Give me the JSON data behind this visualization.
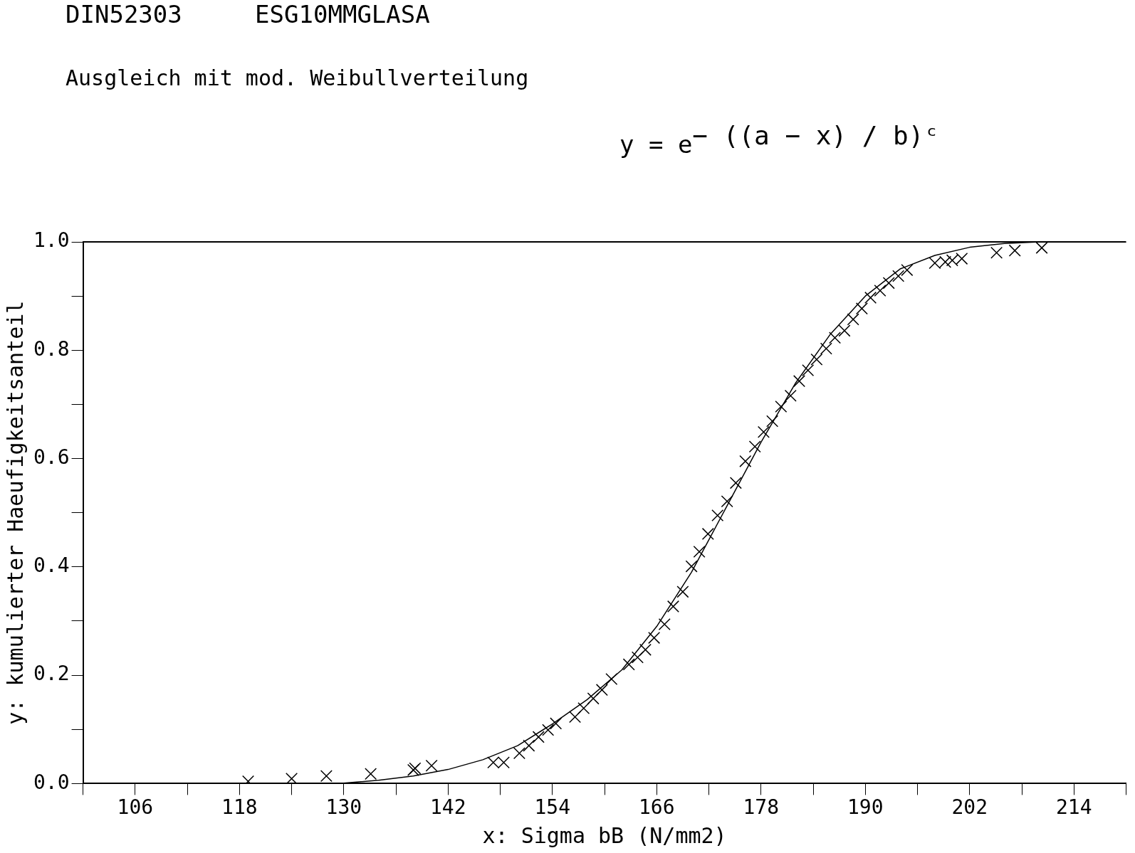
{
  "chart_data": {
    "type": "scatter",
    "title": "DIN52303     ESG10MMGLASA",
    "subtitle": "Ausgleich mit mod. Weibullverteilung",
    "annotations": [
      "y = e$^{− ((a − x) / b)ᶜ}$"
    ],
    "xlabel": "x: Sigma bB (N/mm2)",
    "ylabel": "y: kumulierter Haeufigkeitsanteil",
    "xlim": [
      100,
      220
    ],
    "ylim": [
      0,
      1
    ],
    "xticks": [
      {
        "value": 100,
        "label": null
      },
      106,
      {
        "value": 112,
        "label": null
      },
      118,
      {
        "value": 124,
        "label": null
      },
      130,
      {
        "value": 136,
        "label": null
      },
      142,
      {
        "value": 148,
        "label": null
      },
      154,
      {
        "value": 160,
        "label": null
      },
      166,
      {
        "value": 172,
        "label": null
      },
      178,
      {
        "value": 184,
        "label": null
      },
      190,
      {
        "value": 196,
        "label": null
      },
      202,
      {
        "value": 208,
        "label": null
      },
      214,
      {
        "value": 220,
        "label": null
      }
    ],
    "yticks": [
      {
        "value": 0,
        "label": "0.0"
      },
      {
        "value": 0.1,
        "label": null
      },
      {
        "value": 0.2,
        "label": "0.2"
      },
      {
        "value": 0.3,
        "label": null
      },
      {
        "value": 0.4,
        "label": "0.4"
      },
      {
        "value": 0.5,
        "label": null
      },
      {
        "value": 0.6,
        "label": "0.6"
      },
      {
        "value": 0.7,
        "label": null
      },
      {
        "value": 0.8,
        "label": "0.8"
      },
      {
        "value": 0.9,
        "label": null
      },
      {
        "value": 1,
        "label": "1.0"
      }
    ],
    "grid": false,
    "legend": false,
    "marker": "cross",
    "ref_lines": [
      {
        "axis": "y",
        "value": 1,
        "color": "#000000"
      }
    ],
    "series": [
      {
        "type": "scatter",
        "color": "#000000",
        "x": [
          119.0,
          124.0,
          128.0,
          133.1,
          138.0,
          138.2,
          140.1,
          147.2,
          148.4,
          150.2,
          151.3,
          152.4,
          153.5,
          154.4,
          156.6,
          157.6,
          158.7,
          159.7,
          160.8,
          162.8,
          163.8,
          164.7,
          165.7,
          166.9,
          167.9,
          169.0,
          170.0,
          170.9,
          171.9,
          173.0,
          174.1,
          175.1,
          176.2,
          177.3,
          178.3,
          179.3,
          180.3,
          181.4,
          182.4,
          183.4,
          184.4,
          185.5,
          186.5,
          187.6,
          188.6,
          189.6,
          190.6,
          191.7,
          192.7,
          193.8,
          194.8,
          198.0,
          199.2,
          200.0,
          201.1,
          205.1,
          207.2,
          210.3
        ],
        "values": [
          0.004,
          0.009,
          0.014,
          0.018,
          0.025,
          0.028,
          0.033,
          0.039,
          0.039,
          0.056,
          0.07,
          0.086,
          0.099,
          0.111,
          0.123,
          0.139,
          0.157,
          0.173,
          0.193,
          0.22,
          0.233,
          0.247,
          0.269,
          0.294,
          0.327,
          0.354,
          0.401,
          0.428,
          0.461,
          0.495,
          0.521,
          0.555,
          0.595,
          0.622,
          0.649,
          0.669,
          0.696,
          0.716,
          0.743,
          0.763,
          0.783,
          0.803,
          0.823,
          0.836,
          0.857,
          0.877,
          0.897,
          0.91,
          0.924,
          0.937,
          0.948,
          0.961,
          0.963,
          0.966,
          0.969,
          0.98,
          0.984,
          0.989
        ]
      },
      {
        "type": "line",
        "color": "#000000",
        "marker": "none",
        "x": [
          126,
          130,
          134,
          138,
          142,
          146,
          150,
          154,
          158,
          162,
          166,
          170,
          174,
          178,
          182,
          186,
          190,
          194,
          198,
          202,
          206,
          210,
          220
        ],
        "values": [
          0,
          0.001,
          0.006,
          0.014,
          0.026,
          0.044,
          0.07,
          0.11,
          0.155,
          0.21,
          0.29,
          0.39,
          0.51,
          0.63,
          0.74,
          0.83,
          0.9,
          0.95,
          0.975,
          0.99,
          0.997,
          1,
          1
        ]
      }
    ]
  }
}
